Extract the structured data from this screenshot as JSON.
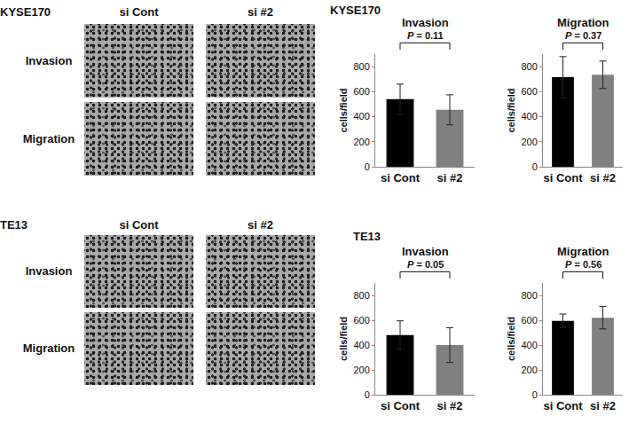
{
  "sections": [
    {
      "label": "KYSE170",
      "columns": [
        "si Cont",
        "si #2"
      ],
      "rows": [
        "Invasion",
        "Migration"
      ],
      "charts_label": "KYSE170"
    },
    {
      "label": "TE13",
      "columns": [
        "si Cont",
        "si #2"
      ],
      "rows": [
        "Invasion",
        "Migration"
      ],
      "charts_label": "TE13"
    }
  ],
  "chart_data": [
    {
      "type": "bar",
      "title": "Invasion",
      "y_label": "cells/field",
      "categories": [
        "si Cont",
        "si #2"
      ],
      "values": [
        540,
        455
      ],
      "errors": [
        120,
        120
      ],
      "colors": [
        "#000000",
        "#808080"
      ],
      "annotation": "P = 0.11",
      "ylim": [
        0,
        900
      ],
      "yticks": [
        0,
        200,
        400,
        600,
        800
      ],
      "grid": false
    },
    {
      "type": "bar",
      "title": "Migration",
      "y_label": "cells/field",
      "categories": [
        "si Cont",
        "si #2"
      ],
      "values": [
        715,
        735
      ],
      "errors": [
        165,
        110
      ],
      "colors": [
        "#000000",
        "#808080"
      ],
      "annotation": "P = 0.37",
      "ylim": [
        0,
        900
      ],
      "yticks": [
        0,
        200,
        400,
        600,
        800
      ],
      "grid": false
    },
    {
      "type": "bar",
      "title": "Invasion",
      "y_label": "cells/field",
      "categories": [
        "si Cont",
        "si #2"
      ],
      "values": [
        480,
        400
      ],
      "errors": [
        115,
        140
      ],
      "colors": [
        "#000000",
        "#808080"
      ],
      "annotation": "P = 0.05",
      "ylim": [
        0,
        900
      ],
      "yticks": [
        0,
        200,
        400,
        600,
        800
      ],
      "grid": false
    },
    {
      "type": "bar",
      "title": "Migration",
      "y_label": "cells/field",
      "categories": [
        "si Cont",
        "si #2"
      ],
      "values": [
        595,
        620
      ],
      "errors": [
        55,
        90
      ],
      "colors": [
        "#000000",
        "#808080"
      ],
      "annotation": "P = 0.56",
      "ylim": [
        0,
        900
      ],
      "yticks": [
        0,
        200,
        400,
        600,
        800
      ],
      "grid": false
    }
  ]
}
